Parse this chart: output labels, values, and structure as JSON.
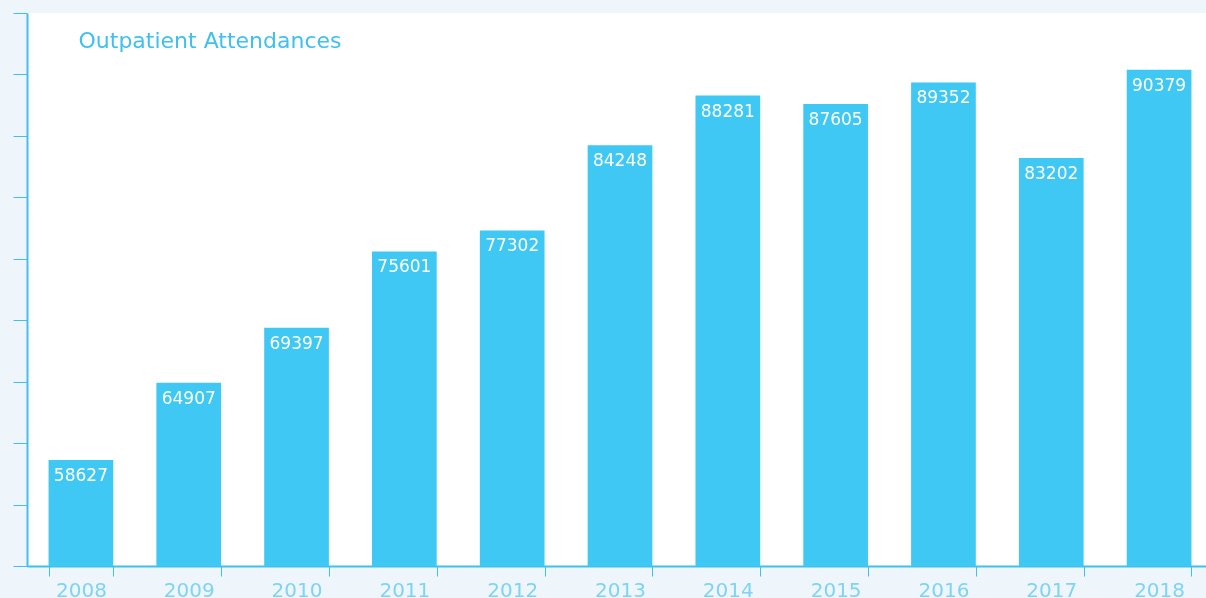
{
  "chart_data": {
    "type": "bar",
    "title": "Outpatient Attendances",
    "categories": [
      "2008",
      "2009",
      "2010",
      "2011",
      "2012",
      "2013",
      "2014",
      "2015",
      "2016",
      "2017",
      "2018"
    ],
    "values": [
      58627,
      64907,
      69397,
      75601,
      77302,
      84248,
      88281,
      87605,
      89352,
      83202,
      90379
    ],
    "color": "#40c8f4",
    "ylim": [
      50000,
      95000
    ],
    "yticks": [
      {
        "value": 50000,
        "label": null
      },
      {
        "value": 55000,
        "label": null
      },
      {
        "value": 60000,
        "label": null
      },
      {
        "value": 65000,
        "label": null
      },
      {
        "value": 70000,
        "label": null
      },
      {
        "value": 75000,
        "label": null
      },
      {
        "value": 80000,
        "label": null
      },
      {
        "value": 85000,
        "label": null
      },
      {
        "value": 90000,
        "label": null
      },
      {
        "value": 95000,
        "label": null
      }
    ],
    "tick_labels": "x",
    "data_labels": true,
    "grid": false
  }
}
